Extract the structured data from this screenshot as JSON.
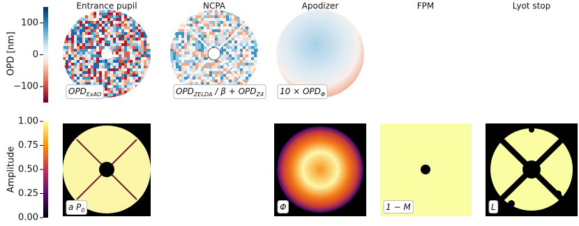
{
  "columns": [
    "Entrance pupil",
    "NCPA",
    "Apodizer",
    "FPM",
    "Lyot stop"
  ],
  "colorbars": [
    {
      "label": "OPD [nm]",
      "lim": [
        -150,
        150
      ],
      "ticks": [
        {
          "value": -100,
          "label": "−100"
        },
        0,
        100
      ]
    },
    {
      "label": "Amplitude",
      "lim": [
        0,
        1
      ],
      "ticks": [
        {
          "value": 0,
          "label": "0.00"
        },
        {
          "value": 0.25,
          "label": "0.25"
        },
        {
          "value": 0.5,
          "label": "0.50"
        },
        {
          "value": 0.75,
          "label": "0.75"
        },
        {
          "value": 1,
          "label": "1.00"
        }
      ]
    }
  ],
  "panel_labels": [
    [
      {
        "t": "OPD"
      },
      {
        "t": "ExAO",
        "sub": true
      }
    ],
    [
      {
        "t": "OPD"
      },
      {
        "t": "ZELDA",
        "sub": true
      },
      {
        "t": " / β + "
      },
      {
        "t": "OPD"
      },
      {
        "t": "Z4",
        "sub": true
      }
    ],
    [
      {
        "t": "10 × OPD"
      },
      {
        "t": "Φ",
        "sub": true
      }
    ],
    [
      {
        "t": "a P"
      },
      {
        "t": "0",
        "sub": true
      }
    ],
    [
      {
        "t": "Φ"
      }
    ],
    [
      {
        "t": "1 − M"
      }
    ],
    [
      {
        "t": "L"
      }
    ]
  ]
}
